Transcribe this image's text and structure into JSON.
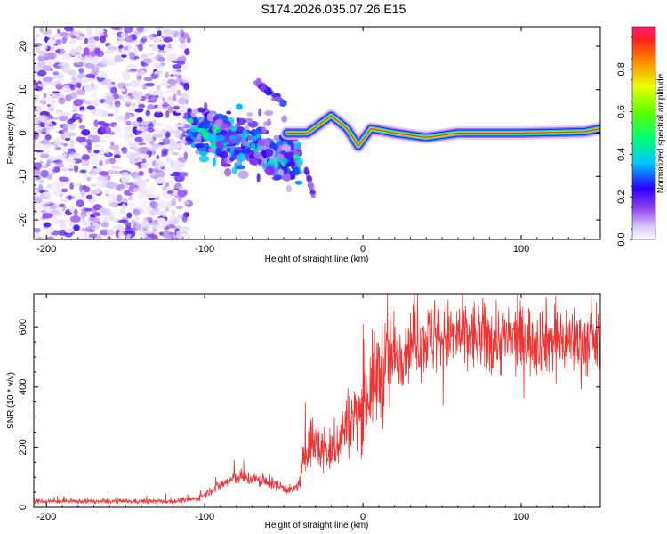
{
  "title": "S174.2026.035.07.26.E15",
  "colors": {
    "snr_line": "#ee3333",
    "frame": "#000000"
  },
  "chart_data": [
    {
      "type": "heatmap",
      "name": "spectrogram",
      "xlabel": "Height of straight line (km)",
      "ylabel": "Frequency (Hz)",
      "xlim": [
        -208,
        150
      ],
      "ylim": [
        -24.5,
        24.5
      ],
      "xticks": [
        -200,
        -100,
        0,
        100
      ],
      "yticks": [
        -20,
        -10,
        0,
        10,
        20
      ],
      "colorbar": {
        "label": "Normalized spectral amplitude",
        "range": [
          0,
          1
        ],
        "ticks": [
          0.0,
          0.2,
          0.4,
          0.6,
          0.8
        ],
        "tick_labels": [
          "0.0",
          "0.2",
          "0.4",
          "0.6",
          "0.8"
        ]
      },
      "features": {
        "noise_region_km": [
          -208,
          -110
        ],
        "scatter_region_km": [
          -110,
          -40
        ],
        "upper_branch": [
          [
            -68,
            12
          ],
          [
            -50,
            7
          ]
        ],
        "lower_branch": [
          [
            -36,
            -8
          ],
          [
            -30,
            -16
          ]
        ],
        "main_trace": [
          [
            -48,
            0
          ],
          [
            -35,
            0
          ],
          [
            -20,
            4
          ],
          [
            -10,
            1
          ],
          [
            -3,
            -3
          ],
          [
            5,
            1
          ],
          [
            20,
            0
          ],
          [
            40,
            -1
          ],
          [
            60,
            0
          ],
          [
            100,
            0
          ],
          [
            140,
            0.3
          ],
          [
            150,
            1
          ]
        ]
      }
    },
    {
      "type": "line",
      "name": "snr",
      "xlabel": "Height of straight line (km)",
      "ylabel": "SNR (10 * v/v)",
      "xlim": [
        -208,
        150
      ],
      "ylim": [
        0,
        710
      ],
      "xticks": [
        -200,
        -100,
        0,
        100
      ],
      "yticks": [
        0,
        200,
        400,
        600
      ],
      "envelope": {
        "x": [
          -208,
          -160,
          -120,
          -105,
          -95,
          -80,
          -70,
          -55,
          -45,
          -40,
          -35,
          -30,
          -25,
          -20,
          -10,
          0,
          5,
          10,
          15,
          20,
          30,
          40,
          60,
          80,
          100,
          120,
          140,
          150
        ],
        "y": [
          20,
          20,
          20,
          28,
          60,
          100,
          95,
          75,
          55,
          80,
          220,
          210,
          190,
          180,
          280,
          330,
          400,
          440,
          480,
          500,
          545,
          560,
          570,
          560,
          555,
          560,
          550,
          555
        ]
      }
    }
  ]
}
